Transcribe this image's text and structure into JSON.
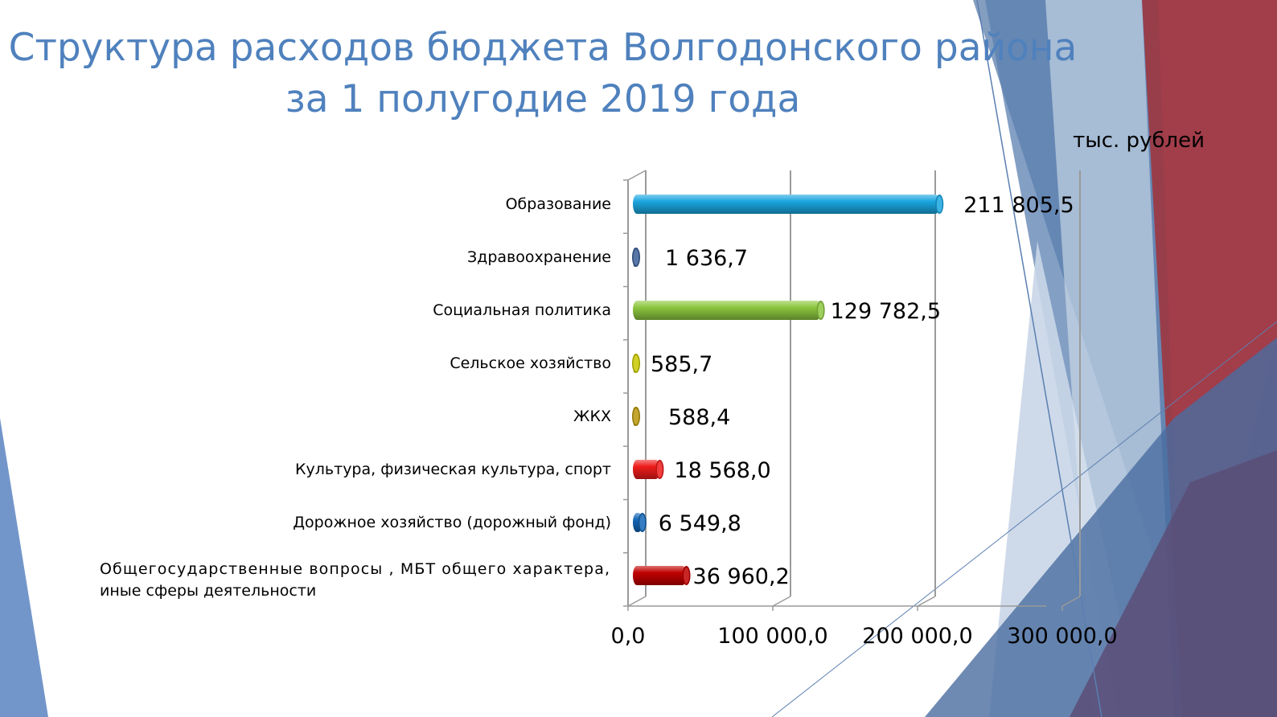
{
  "title_line1": "Структура расходов бюджета Волгодонского района",
  "title_line2": "за 1 полугодие 2019 года",
  "units": "тыс. рублей",
  "colors": {
    "title": "#4f81bd",
    "bars": [
      "#1aa6e0",
      "#3a5f96",
      "#8cc63f",
      "#c8c800",
      "#b8960a",
      "#ee1c1c",
      "#1466b8",
      "#c00000"
    ]
  },
  "chart_data": {
    "type": "bar",
    "orientation": "horizontal",
    "categories": [
      "Образование",
      "Здравоохранение",
      "Социальная политика",
      "Сельское хозяйство",
      "ЖКХ",
      "Культура, физическая культура, спорт",
      "Дорожное хозяйство (дорожный фонд)",
      "Общегосударственные вопросы , МБТ общего характера, иные сферы деятельности"
    ],
    "category_lines": [
      [
        "Образование"
      ],
      [
        "Здравоохранение"
      ],
      [
        "Социальная политика"
      ],
      [
        "Сельское хозяйство"
      ],
      [
        "ЖКХ"
      ],
      [
        "Культура, физическая культура, спорт"
      ],
      [
        "Дорожное хозяйство (дорожный фонд)"
      ],
      [
        "Общегосударственные вопросы , МБТ общего характера,",
        "иные сферы деятельности"
      ]
    ],
    "values": [
      211805.5,
      1636.7,
      129782.5,
      585.7,
      588.4,
      18568.0,
      6549.8,
      36960.2
    ],
    "value_labels": [
      "211 805,5",
      "1 636,7",
      "129 782,5",
      "585,7",
      "588,4",
      "18 568,0",
      "6 549,8",
      "36 960,2"
    ],
    "xlim": [
      0,
      300000
    ],
    "x_ticks": [
      "0,0",
      "100 000,0",
      "200 000,0",
      "300 000,0"
    ],
    "grid": true,
    "style": "3d-cylinder",
    "legend": "none"
  }
}
